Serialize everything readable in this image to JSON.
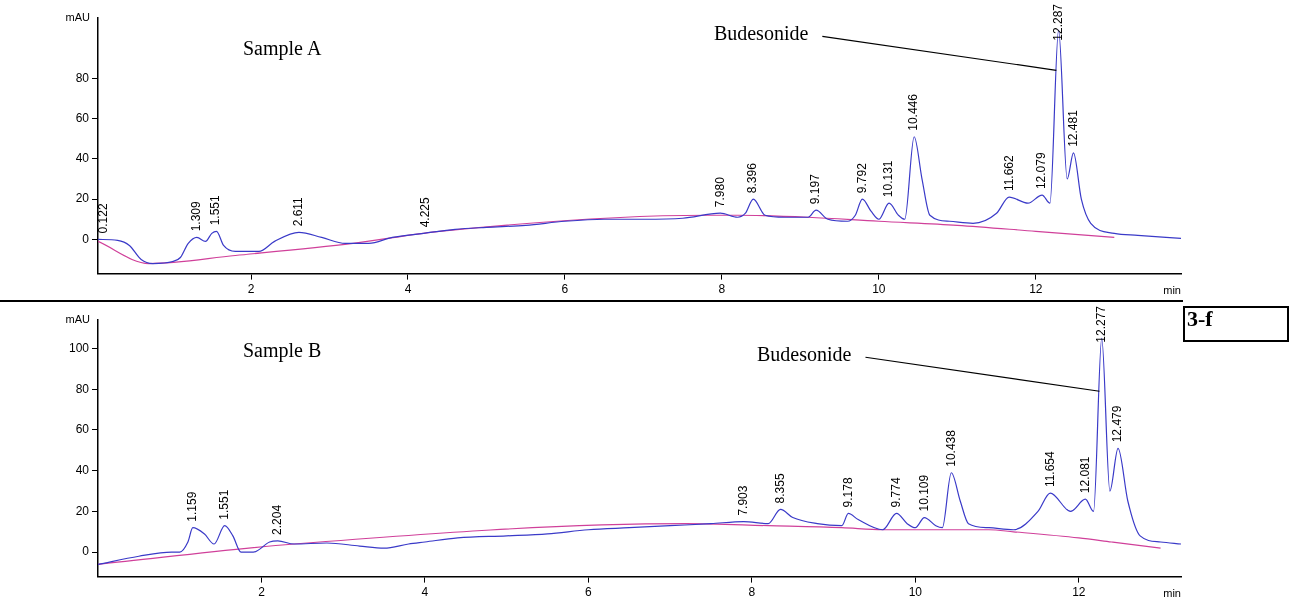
{
  "chart_data": [
    {
      "type": "line",
      "xlabel": "min",
      "ylabel": "mAU",
      "xlim": [
        0.05,
        13.85
      ],
      "ylim": [
        -17,
        110
      ],
      "xticks": [
        2,
        4,
        6,
        8,
        10,
        12
      ],
      "yticks": [
        0,
        20,
        40,
        60,
        80
      ],
      "grid": false,
      "legend": false,
      "marker": "none",
      "line_style": "solid",
      "series": [
        {
          "color": "#3a3ac8",
          "x": [
            0.05,
            0.3,
            0.45,
            0.6,
            0.75,
            1.0,
            1.1,
            1.2,
            1.31,
            1.42,
            1.5,
            1.56,
            1.65,
            1.8,
            2.1,
            2.3,
            2.61,
            2.9,
            3.2,
            3.5,
            3.8,
            4.2,
            4.6,
            5.0,
            5.5,
            6.0,
            6.5,
            7.0,
            7.5,
            7.98,
            8.2,
            8.3,
            8.4,
            8.55,
            8.8,
            9.1,
            9.2,
            9.35,
            9.6,
            9.7,
            9.79,
            9.9,
            10.0,
            10.13,
            10.25,
            10.33,
            10.45,
            10.55,
            10.65,
            10.9,
            11.2,
            11.5,
            11.66,
            11.9,
            12.08,
            12.18,
            12.29,
            12.4,
            12.48,
            12.58,
            12.7,
            13.0,
            13.3,
            13.85
          ],
          "values": [
            0,
            -0.5,
            -3,
            -10,
            -12,
            -11,
            -9,
            -2,
            1,
            -1,
            3,
            4,
            -3,
            -6,
            -6,
            -1,
            3.5,
            1,
            -2,
            -2,
            1,
            3,
            5,
            6,
            7,
            9,
            10,
            10,
            10.5,
            13,
            11,
            13,
            20,
            12,
            11,
            11,
            14.5,
            10,
            9,
            12,
            20,
            14,
            10,
            18,
            12,
            10,
            51,
            30,
            12,
            9,
            8,
            13,
            21,
            18,
            22,
            18,
            104,
            30,
            43,
            20,
            8,
            3,
            2,
            0.5
          ]
        },
        {
          "color": "#d0409a",
          "x": [
            0.05,
            0.7,
            1.8,
            3.3,
            4.4,
            7.8,
            8.2,
            9.1,
            10.0,
            11.0,
            12.0,
            13.0
          ],
          "values": [
            -1,
            -12,
            -8,
            -2,
            4,
            12,
            12,
            11,
            9,
            7,
            4,
            1
          ]
        }
      ],
      "annotations": [
        {
          "text": "Budesonide",
          "x": 12.287,
          "y": 84
        },
        "Sample A",
        {
          "text": "0.122",
          "x": 0.122,
          "y": 0
        },
        {
          "text": "1.309",
          "x": 1.309,
          "y": 1
        },
        {
          "text": "1.551",
          "x": 1.551,
          "y": 4
        },
        {
          "text": "2.611",
          "x": 2.611,
          "y": 3.5
        },
        {
          "text": "4.225",
          "x": 4.225,
          "y": 3
        },
        {
          "text": "7.980",
          "x": 7.98,
          "y": 13
        },
        {
          "text": "8.396",
          "x": 8.396,
          "y": 20
        },
        {
          "text": "9.197",
          "x": 9.197,
          "y": 14.5
        },
        {
          "text": "9.792",
          "x": 9.792,
          "y": 20
        },
        {
          "text": "10.131",
          "x": 10.131,
          "y": 18
        },
        {
          "text": "10.446",
          "x": 10.446,
          "y": 51
        },
        {
          "text": "11.662",
          "x": 11.662,
          "y": 21
        },
        {
          "text": "12.079",
          "x": 12.079,
          "y": 22
        },
        {
          "text": "12.287",
          "x": 12.287,
          "y": 104
        },
        {
          "text": "12.481",
          "x": 12.481,
          "y": 43
        }
      ]
    },
    {
      "type": "line",
      "xlabel": "min",
      "ylabel": "mAU",
      "xlim": [
        0,
        13.25
      ],
      "ylim": [
        -12,
        114
      ],
      "xticks": [
        2,
        4,
        6,
        8,
        10,
        12
      ],
      "yticks": [
        0,
        20,
        40,
        60,
        80,
        100
      ],
      "grid": false,
      "legend": false,
      "marker": "none",
      "line_style": "solid",
      "series": [
        {
          "color": "#3a3ac8",
          "x": [
            0,
            0.5,
            0.9,
            1.0,
            1.1,
            1.16,
            1.3,
            1.42,
            1.55,
            1.65,
            1.75,
            1.9,
            2.1,
            2.2,
            2.4,
            2.8,
            3.2,
            3.5,
            3.8,
            4.0,
            4.4,
            5.0,
            5.5,
            6.0,
            6.5,
            7.0,
            7.5,
            7.9,
            8.2,
            8.35,
            8.5,
            8.8,
            9.1,
            9.18,
            9.3,
            9.6,
            9.77,
            9.9,
            10.0,
            10.11,
            10.25,
            10.33,
            10.44,
            10.55,
            10.65,
            10.9,
            11.2,
            11.5,
            11.65,
            11.9,
            12.08,
            12.18,
            12.28,
            12.38,
            12.48,
            12.6,
            12.75,
            13.0,
            13.25
          ],
          "values": [
            -6,
            -2,
            0,
            0,
            5,
            12,
            9,
            4,
            13,
            8,
            0,
            0,
            5,
            5.5,
            4,
            4.5,
            3,
            2,
            4,
            5,
            7,
            8,
            9,
            11,
            12,
            13,
            14,
            15,
            14,
            21,
            17,
            14,
            13,
            19,
            16,
            11,
            19,
            14,
            12,
            17,
            13,
            12,
            39,
            25,
            14,
            12,
            11,
            20,
            29,
            20,
            26,
            20,
            105,
            30,
            51,
            25,
            8,
            5,
            4
          ]
        },
        {
          "color": "#d0409a",
          "x": [
            0,
            2.4,
            7.2,
            8.2,
            9.1,
            9.6,
            10.9,
            11.2,
            12.0,
            12.4,
            13.0
          ],
          "values": [
            -6,
            4,
            14,
            13,
            12,
            11,
            11,
            10,
            7,
            5,
            2
          ]
        }
      ],
      "annotations": [
        {
          "text": "Budesonide",
          "x": 12.277,
          "y": 79
        },
        "Sample B",
        "3-f",
        {
          "text": "1.159",
          "x": 1.16,
          "y": 12
        },
        {
          "text": "1.551",
          "x": 1.55,
          "y": 13
        },
        {
          "text": "2.204",
          "x": 2.2,
          "y": 5.5
        },
        {
          "text": "7.903",
          "x": 7.9,
          "y": 15
        },
        {
          "text": "8.355",
          "x": 8.35,
          "y": 21
        },
        {
          "text": "9.178",
          "x": 9.18,
          "y": 19
        },
        {
          "text": "9.774",
          "x": 9.77,
          "y": 19
        },
        {
          "text": "10.109",
          "x": 10.11,
          "y": 17
        },
        {
          "text": "10.438",
          "x": 10.44,
          "y": 39
        },
        {
          "text": "11.654",
          "x": 11.65,
          "y": 29
        },
        {
          "text": "12.081",
          "x": 12.08,
          "y": 26
        },
        {
          "text": "12.277",
          "x": 12.28,
          "y": 105
        },
        {
          "text": "12.479",
          "x": 12.48,
          "y": 51
        }
      ]
    }
  ]
}
